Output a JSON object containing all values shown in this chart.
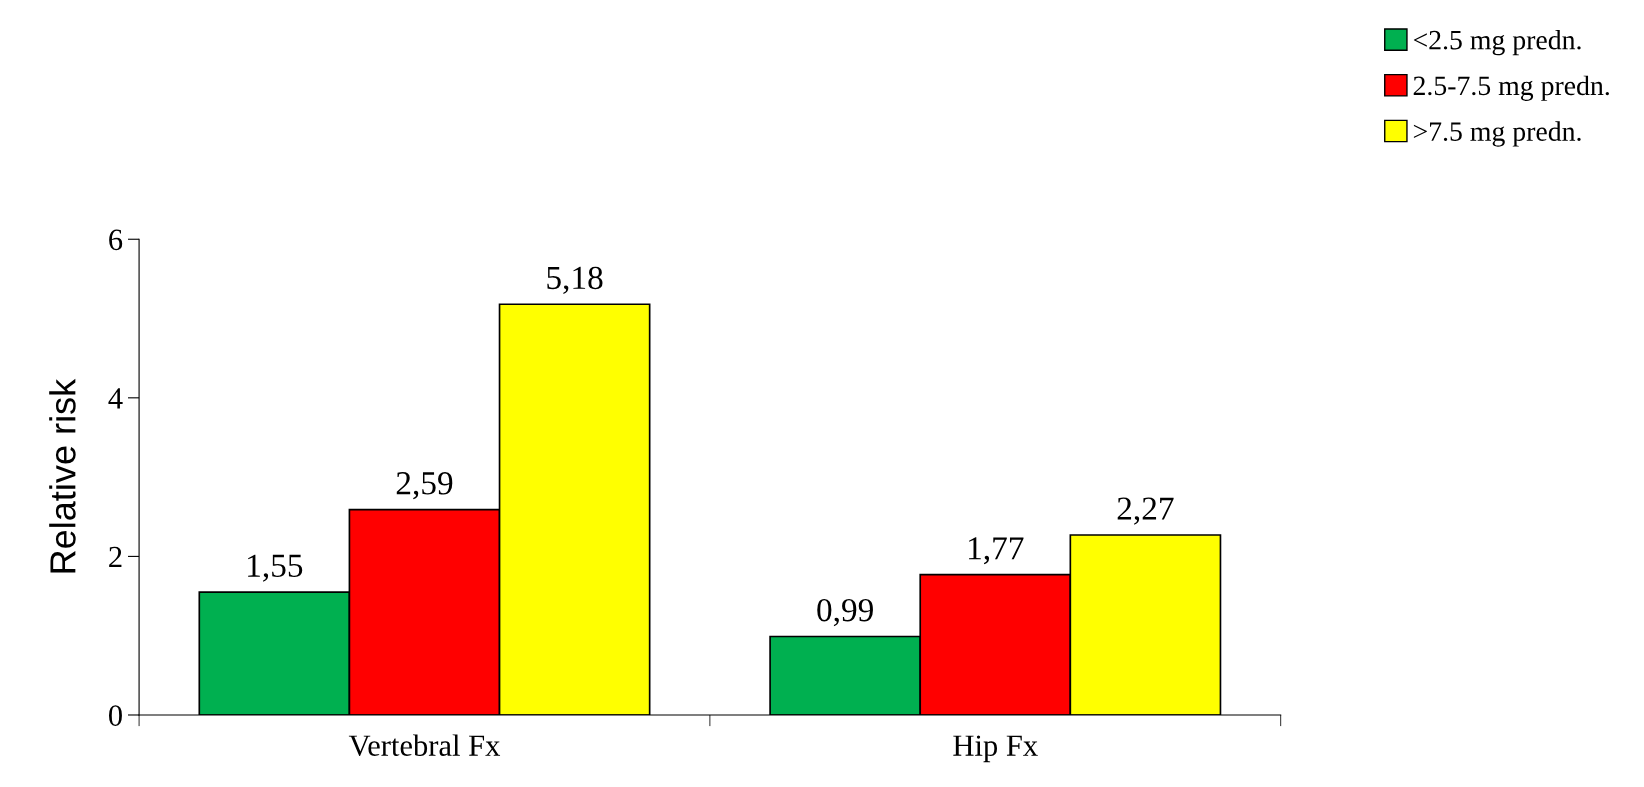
{
  "chart_data": {
    "type": "bar",
    "ylabel": "Relative risk",
    "categories": [
      "Vertebral Fx",
      "Hip Fx"
    ],
    "series": [
      {
        "name": "<2.5 mg predn.",
        "color": "#00b050",
        "values": [
          1.55,
          0.99
        ],
        "value_labels": [
          "1,55",
          "0,99"
        ]
      },
      {
        "name": "2.5-7.5 mg predn.",
        "color": "#ff0000",
        "values": [
          2.59,
          1.77
        ],
        "value_labels": [
          "2,59",
          "1,77"
        ]
      },
      {
        "name": ">7.5 mg predn.",
        "color": "#ffff00",
        "values": [
          5.18,
          2.27
        ],
        "value_labels": [
          "5,18",
          "2,27"
        ]
      }
    ],
    "ylim": [
      0,
      6
    ],
    "yticks": [
      0,
      2,
      4,
      6
    ],
    "grid": false,
    "legend": "top right"
  }
}
